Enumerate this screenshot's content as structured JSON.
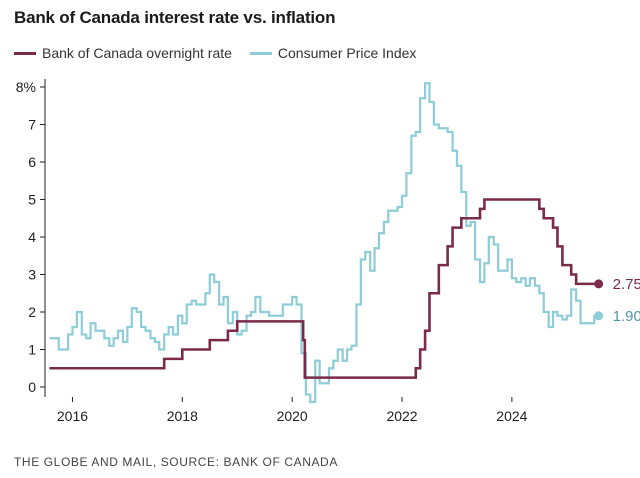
{
  "title": "Bank of Canada interest rate vs. inflation",
  "source": "THE GLOBE AND MAIL, SOURCE: BANK OF CANADA",
  "colors": {
    "boc": "#7b2a4a",
    "cpi": "#8ecdd7",
    "axis": "#222222",
    "cpi_label": "#4f9aa6"
  },
  "legend": [
    {
      "name": "Bank of Canada overnight rate",
      "color": "#7b2a4a"
    },
    {
      "name": "Consumer Price Index",
      "color": "#8ecdd7"
    }
  ],
  "chart_data": {
    "type": "line",
    "title": "Bank of Canada interest rate vs. inflation",
    "xlabel": "",
    "ylabel": "",
    "xlim": [
      2015.5,
      2025.75
    ],
    "ylim": [
      0,
      8
    ],
    "y_ticks": [
      0,
      1,
      2,
      3,
      4,
      5,
      6,
      7,
      8
    ],
    "y_tick_labels": [
      "0",
      "1",
      "2",
      "3",
      "4",
      "5",
      "6",
      "7",
      "8%"
    ],
    "x_ticks": [
      2016,
      2018,
      2020,
      2022,
      2024
    ],
    "x_tick_labels": [
      "2016",
      "2018",
      "2020",
      "2022",
      "2024"
    ],
    "series": [
      {
        "name": "Bank of Canada overnight rate",
        "step": true,
        "end_label": "2.75%",
        "points": [
          [
            2015.58,
            0.5
          ],
          [
            2017.5,
            0.5
          ],
          [
            2017.67,
            0.75
          ],
          [
            2018.0,
            1.0
          ],
          [
            2018.5,
            1.25
          ],
          [
            2018.83,
            1.5
          ],
          [
            2019.0,
            1.75
          ],
          [
            2020.17,
            1.75
          ],
          [
            2020.2,
            1.25
          ],
          [
            2020.23,
            0.25
          ],
          [
            2022.17,
            0.25
          ],
          [
            2022.25,
            0.5
          ],
          [
            2022.33,
            1.0
          ],
          [
            2022.42,
            1.5
          ],
          [
            2022.5,
            2.5
          ],
          [
            2022.67,
            3.25
          ],
          [
            2022.83,
            3.75
          ],
          [
            2022.92,
            4.25
          ],
          [
            2023.08,
            4.5
          ],
          [
            2023.42,
            4.75
          ],
          [
            2023.5,
            5.0
          ],
          [
            2024.42,
            5.0
          ],
          [
            2024.5,
            4.75
          ],
          [
            2024.58,
            4.5
          ],
          [
            2024.75,
            4.25
          ],
          [
            2024.83,
            3.75
          ],
          [
            2024.92,
            3.25
          ],
          [
            2025.08,
            3.0
          ],
          [
            2025.17,
            2.75
          ],
          [
            2025.58,
            2.75
          ]
        ]
      },
      {
        "name": "Consumer Price Index",
        "step": true,
        "end_label": "1.90%",
        "points": [
          [
            2015.58,
            1.3
          ],
          [
            2015.75,
            1.0
          ],
          [
            2015.92,
            1.4
          ],
          [
            2016.0,
            1.6
          ],
          [
            2016.08,
            2.0
          ],
          [
            2016.17,
            1.4
          ],
          [
            2016.25,
            1.3
          ],
          [
            2016.33,
            1.7
          ],
          [
            2016.42,
            1.5
          ],
          [
            2016.58,
            1.3
          ],
          [
            2016.67,
            1.1
          ],
          [
            2016.75,
            1.3
          ],
          [
            2016.83,
            1.5
          ],
          [
            2016.92,
            1.2
          ],
          [
            2017.0,
            1.6
          ],
          [
            2017.08,
            2.1
          ],
          [
            2017.17,
            2.0
          ],
          [
            2017.25,
            1.6
          ],
          [
            2017.33,
            1.5
          ],
          [
            2017.42,
            1.3
          ],
          [
            2017.5,
            1.2
          ],
          [
            2017.58,
            1.0
          ],
          [
            2017.67,
            1.4
          ],
          [
            2017.75,
            1.6
          ],
          [
            2017.83,
            1.4
          ],
          [
            2017.92,
            1.9
          ],
          [
            2018.0,
            1.7
          ],
          [
            2018.08,
            2.2
          ],
          [
            2018.17,
            2.3
          ],
          [
            2018.25,
            2.2
          ],
          [
            2018.33,
            2.2
          ],
          [
            2018.42,
            2.5
          ],
          [
            2018.5,
            3.0
          ],
          [
            2018.58,
            2.8
          ],
          [
            2018.67,
            2.2
          ],
          [
            2018.75,
            2.4
          ],
          [
            2018.83,
            1.7
          ],
          [
            2018.92,
            2.0
          ],
          [
            2019.0,
            1.4
          ],
          [
            2019.08,
            1.5
          ],
          [
            2019.17,
            1.9
          ],
          [
            2019.25,
            2.0
          ],
          [
            2019.33,
            2.4
          ],
          [
            2019.42,
            2.0
          ],
          [
            2019.5,
            2.0
          ],
          [
            2019.58,
            1.9
          ],
          [
            2019.67,
            1.9
          ],
          [
            2019.75,
            1.9
          ],
          [
            2019.83,
            2.2
          ],
          [
            2019.92,
            2.2
          ],
          [
            2020.0,
            2.4
          ],
          [
            2020.08,
            2.2
          ],
          [
            2020.17,
            0.9
          ],
          [
            2020.25,
            -0.2
          ],
          [
            2020.33,
            -0.4
          ],
          [
            2020.42,
            0.7
          ],
          [
            2020.5,
            0.1
          ],
          [
            2020.58,
            0.1
          ],
          [
            2020.67,
            0.5
          ],
          [
            2020.75,
            0.7
          ],
          [
            2020.83,
            1.0
          ],
          [
            2020.92,
            0.7
          ],
          [
            2021.0,
            1.0
          ],
          [
            2021.08,
            1.1
          ],
          [
            2021.17,
            2.2
          ],
          [
            2021.25,
            3.4
          ],
          [
            2021.33,
            3.6
          ],
          [
            2021.42,
            3.1
          ],
          [
            2021.5,
            3.7
          ],
          [
            2021.58,
            4.1
          ],
          [
            2021.67,
            4.4
          ],
          [
            2021.75,
            4.7
          ],
          [
            2021.83,
            4.7
          ],
          [
            2021.92,
            4.8
          ],
          [
            2022.0,
            5.1
          ],
          [
            2022.08,
            5.7
          ],
          [
            2022.17,
            6.7
          ],
          [
            2022.25,
            6.8
          ],
          [
            2022.33,
            7.7
          ],
          [
            2022.42,
            8.1
          ],
          [
            2022.5,
            7.6
          ],
          [
            2022.58,
            7.0
          ],
          [
            2022.67,
            6.9
          ],
          [
            2022.75,
            6.9
          ],
          [
            2022.83,
            6.8
          ],
          [
            2022.92,
            6.3
          ],
          [
            2023.0,
            5.9
          ],
          [
            2023.08,
            5.2
          ],
          [
            2023.17,
            4.3
          ],
          [
            2023.25,
            4.4
          ],
          [
            2023.33,
            3.4
          ],
          [
            2023.42,
            2.8
          ],
          [
            2023.5,
            3.3
          ],
          [
            2023.58,
            4.0
          ],
          [
            2023.67,
            3.8
          ],
          [
            2023.75,
            3.1
          ],
          [
            2023.83,
            3.1
          ],
          [
            2023.92,
            3.4
          ],
          [
            2024.0,
            2.9
          ],
          [
            2024.08,
            2.8
          ],
          [
            2024.17,
            2.9
          ],
          [
            2024.25,
            2.7
          ],
          [
            2024.33,
            2.9
          ],
          [
            2024.42,
            2.7
          ],
          [
            2024.5,
            2.5
          ],
          [
            2024.58,
            2.0
          ],
          [
            2024.67,
            1.6
          ],
          [
            2024.75,
            2.0
          ],
          [
            2024.83,
            1.9
          ],
          [
            2024.92,
            1.8
          ],
          [
            2025.0,
            1.9
          ],
          [
            2025.08,
            2.6
          ],
          [
            2025.17,
            2.3
          ],
          [
            2025.25,
            1.7
          ],
          [
            2025.33,
            1.7
          ],
          [
            2025.42,
            1.7
          ],
          [
            2025.5,
            1.9
          ],
          [
            2025.58,
            1.9
          ]
        ]
      }
    ]
  }
}
